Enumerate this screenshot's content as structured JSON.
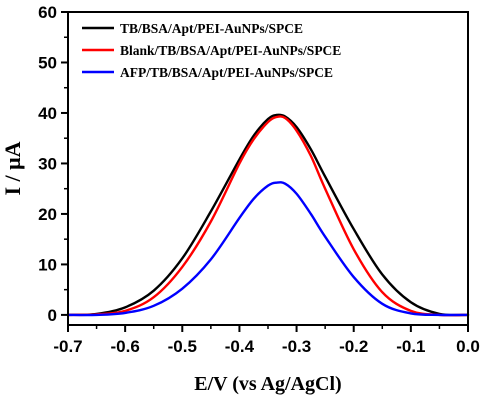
{
  "chart_data": {
    "type": "line",
    "title": "",
    "xlabel": "E/V (vs Ag/AgCl)",
    "ylabel": "I / μA",
    "xlim": [
      -0.7,
      0.0
    ],
    "ylim": [
      -2,
      60
    ],
    "xticks": [
      -0.7,
      -0.6,
      -0.5,
      -0.4,
      -0.3,
      -0.2,
      -0.1,
      0.0
    ],
    "xtick_labels": [
      "-0.7",
      "-0.6",
      "-0.5",
      "-0.4",
      "-0.3",
      "-0.2",
      "-0.1",
      "0.0"
    ],
    "yticks": [
      0,
      10,
      20,
      30,
      40,
      50,
      60
    ],
    "ytick_labels": [
      "0",
      "10",
      "20",
      "30",
      "40",
      "50",
      "60"
    ],
    "grid": false,
    "legend_position": "top-left",
    "series": [
      {
        "name": "TB/BSA/Apt/PEI-AuNPs/SPCE",
        "color": "#000000",
        "x": [
          -0.7,
          -0.65,
          -0.6,
          -0.55,
          -0.5,
          -0.45,
          -0.4,
          -0.375,
          -0.35,
          -0.335,
          -0.32,
          -0.3,
          -0.275,
          -0.25,
          -0.2,
          -0.15,
          -0.1,
          -0.05,
          0.0
        ],
        "y": [
          0.0,
          0.2,
          1.5,
          4.8,
          11.2,
          20.5,
          30.8,
          35.5,
          38.8,
          39.6,
          39.3,
          37.2,
          32.8,
          27.4,
          17.0,
          8.0,
          2.5,
          0.2,
          0.0
        ]
      },
      {
        "name": "Blank/TB/BSA/Apt/PEI-AuNPs/SPCE",
        "color": "#ff0000",
        "x": [
          -0.7,
          -0.65,
          -0.6,
          -0.55,
          -0.5,
          -0.45,
          -0.4,
          -0.375,
          -0.35,
          -0.335,
          -0.32,
          -0.3,
          -0.275,
          -0.25,
          -0.2,
          -0.15,
          -0.1,
          -0.05,
          0.0
        ],
        "y": [
          0.0,
          0.1,
          0.8,
          3.5,
          9.5,
          18.5,
          30.0,
          34.8,
          38.2,
          39.2,
          39.0,
          36.5,
          31.5,
          25.0,
          13.0,
          4.5,
          0.8,
          0.0,
          0.0
        ]
      },
      {
        "name": "AFP/TB/BSA/Apt/PEI-AuNPs/SPCE",
        "color": "#0000ff",
        "x": [
          -0.7,
          -0.65,
          -0.6,
          -0.55,
          -0.5,
          -0.45,
          -0.4,
          -0.375,
          -0.35,
          -0.335,
          -0.32,
          -0.3,
          -0.275,
          -0.25,
          -0.2,
          -0.15,
          -0.1,
          -0.05,
          0.0
        ],
        "y": [
          0.0,
          0.0,
          0.4,
          1.8,
          5.2,
          11.0,
          19.2,
          23.0,
          25.6,
          26.2,
          26.0,
          24.0,
          20.0,
          15.5,
          7.5,
          2.2,
          0.3,
          0.0,
          0.0
        ]
      }
    ]
  }
}
